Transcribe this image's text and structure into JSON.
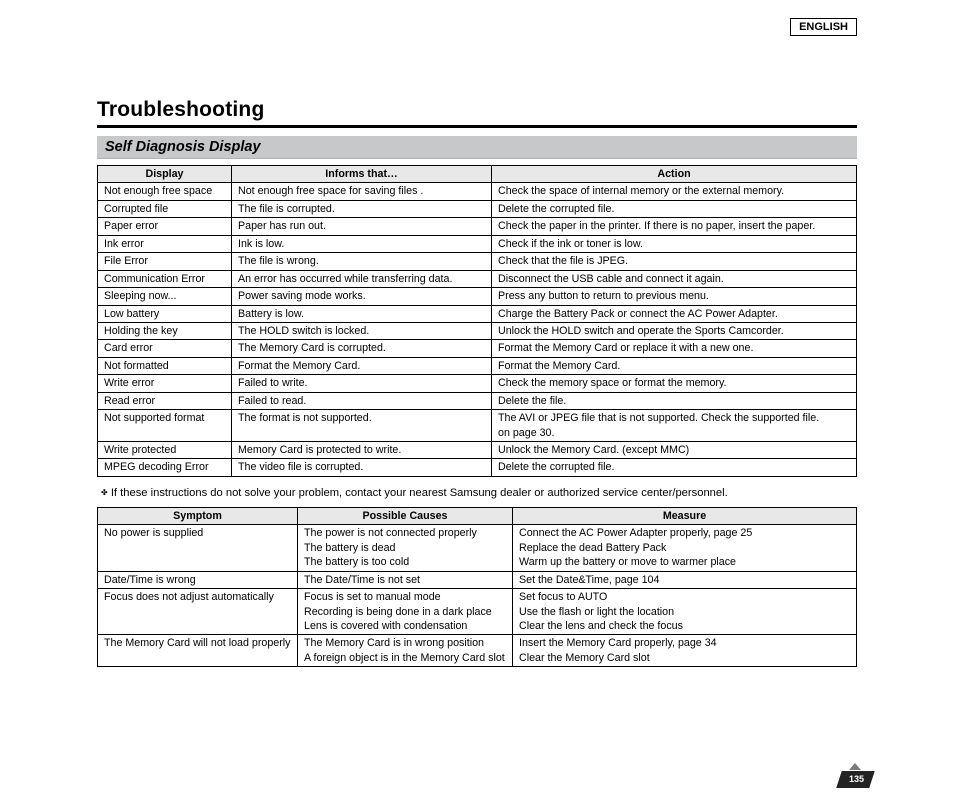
{
  "language_label": "ENGLISH",
  "title": "Troubleshooting",
  "section1_title": "Self Diagnosis Display",
  "table1": {
    "headers": [
      "Display",
      "Informs that…",
      "Action"
    ],
    "rows": [
      [
        "Not enough free space",
        "Not enough free space for saving files .",
        "Check the space of internal memory or the external memory."
      ],
      [
        "Corrupted file",
        "The file is corrupted.",
        "Delete the corrupted file."
      ],
      [
        "Paper error",
        "Paper has run out.",
        "Check the paper in the printer. If there is no paper, insert the paper."
      ],
      [
        "Ink error",
        "Ink is low.",
        "Check if the ink or toner is low."
      ],
      [
        "File Error",
        "The file is wrong.",
        "Check that the file is JPEG."
      ],
      [
        "Communication Error",
        "An error has occurred while transferring data.",
        "Disconnect the USB cable and connect it again."
      ],
      [
        "Sleeping now...",
        "Power saving mode works.",
        "Press any button to return to previous menu."
      ],
      [
        "Low battery",
        "Battery is low.",
        "Charge the Battery Pack or connect the AC Power Adapter."
      ],
      [
        "Holding the key",
        "The HOLD switch is locked.",
        "Unlock the HOLD switch and operate the Sports Camcorder."
      ],
      [
        "Card error",
        "The Memory Card is corrupted.",
        "Format the Memory Card or replace it with a new one."
      ],
      [
        "Not formatted",
        "Format the Memory Card.",
        "Format the Memory Card."
      ],
      [
        "Write error",
        "Failed to write.",
        "Check the memory space or format the memory."
      ],
      [
        "Read error",
        "Failed to read.",
        "Delete the file."
      ],
      [
        "Not supported format",
        "The format is not supported.",
        "The AVI or JPEG file that is not supported. Check the supported file. on page 30."
      ],
      [
        "Write protected",
        "Memory Card is protected to write.",
        "Unlock the Memory Card. (except MMC)"
      ],
      [
        "MPEG decoding Error",
        "The video file is corrupted.",
        "Delete the corrupted file."
      ]
    ]
  },
  "note_bullet": "✤",
  "note_text": "If these instructions do not solve your problem, contact your nearest Samsung dealer or authorized service center/personnel.",
  "table2": {
    "headers": [
      "Symptom",
      "Possible Causes",
      "Measure"
    ],
    "rows": [
      {
        "symptom": "No power is supplied",
        "causes": [
          "The power is not connected properly",
          "The battery is dead",
          "The battery is too cold"
        ],
        "measures": [
          "Connect the AC Power Adapter properly, page 25",
          "Replace the dead Battery Pack",
          "Warm up the battery or move to warmer place"
        ]
      },
      {
        "symptom": "Date/Time is wrong",
        "causes": [
          "The Date/Time is not set"
        ],
        "measures": [
          "Set the Date&Time, page 104"
        ]
      },
      {
        "symptom": "Focus does not adjust automatically",
        "causes": [
          "Focus is set to manual mode",
          "Recording is being done in a dark place",
          "Lens is covered with condensation"
        ],
        "measures": [
          "Set focus to AUTO",
          "Use the flash or light the location",
          "Clear the lens and check the focus"
        ]
      },
      {
        "symptom": "The Memory Card will not load properly",
        "causes": [
          "The Memory Card is in wrong position",
          "A foreign object is in the Memory Card slot"
        ],
        "measures": [
          "Insert the Memory Card properly, page 34",
          "Clear the Memory Card slot"
        ]
      }
    ]
  },
  "page_number": "135"
}
